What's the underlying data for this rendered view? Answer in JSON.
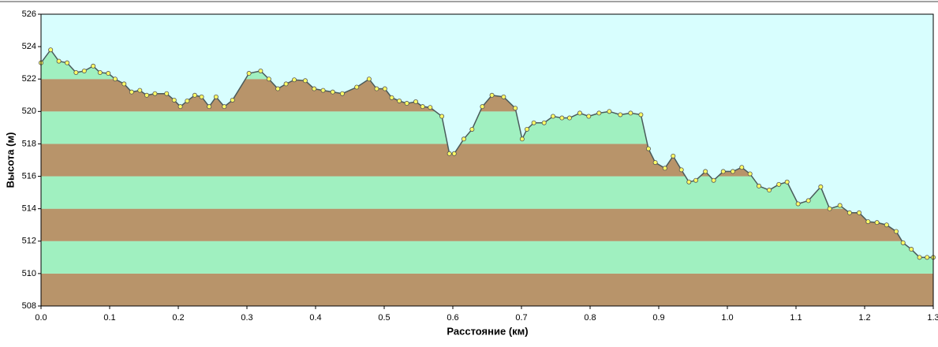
{
  "chart_data": {
    "type": "area",
    "xlabel": "Расстояние  (км)",
    "ylabel": "Высота (м)",
    "x": [
      0,
      0.014,
      0.026,
      0.038,
      0.051,
      0.063,
      0.076,
      0.086,
      0.098,
      0.108,
      0.121,
      0.132,
      0.144,
      0.154,
      0.166,
      0.183,
      0.194,
      0.203,
      0.213,
      0.224,
      0.234,
      0.245,
      0.255,
      0.267,
      0.279,
      0.303,
      0.32,
      0.332,
      0.345,
      0.357,
      0.369,
      0.385,
      0.398,
      0.411,
      0.425,
      0.439,
      0.46,
      0.478,
      0.489,
      0.501,
      0.511,
      0.522,
      0.533,
      0.546,
      0.556,
      0.567,
      0.584,
      0.595,
      0.602,
      0.616,
      0.628,
      0.643,
      0.657,
      0.674,
      0.691,
      0.701,
      0.708,
      0.718,
      0.733,
      0.746,
      0.759,
      0.77,
      0.785,
      0.798,
      0.813,
      0.828,
      0.844,
      0.859,
      0.874,
      0.885,
      0.895,
      0.909,
      0.921,
      0.933,
      0.944,
      0.954,
      0.968,
      0.98,
      0.994,
      1.008,
      1.021,
      1.033,
      1.046,
      1.061,
      1.075,
      1.087,
      1.103,
      1.118,
      1.136,
      1.149,
      1.164,
      1.178,
      1.192,
      1.205,
      1.218,
      1.232,
      1.246,
      1.256,
      1.268,
      1.28,
      1.291,
      1.3
    ],
    "values": [
      523.0,
      523.8,
      523.1,
      523.0,
      522.4,
      522.5,
      522.8,
      522.4,
      522.35,
      522.0,
      521.7,
      521.2,
      521.3,
      521.0,
      521.1,
      521.1,
      520.7,
      520.3,
      520.65,
      521.0,
      520.9,
      520.3,
      520.9,
      520.3,
      520.7,
      522.35,
      522.5,
      522.0,
      521.4,
      521.7,
      521.95,
      521.9,
      521.4,
      521.3,
      521.2,
      521.1,
      521.5,
      522.0,
      521.4,
      521.4,
      520.85,
      520.65,
      520.5,
      520.6,
      520.3,
      520.25,
      519.7,
      517.4,
      517.4,
      518.3,
      518.9,
      520.3,
      521.0,
      520.9,
      520.2,
      518.3,
      518.9,
      519.3,
      519.3,
      519.7,
      519.6,
      519.6,
      519.9,
      519.7,
      519.9,
      520.0,
      519.8,
      519.9,
      519.8,
      517.7,
      516.85,
      516.5,
      517.25,
      516.4,
      515.65,
      515.75,
      516.3,
      515.75,
      516.3,
      516.3,
      516.55,
      516.15,
      515.4,
      515.15,
      515.5,
      515.65,
      514.3,
      514.5,
      515.35,
      514.0,
      514.2,
      513.75,
      513.75,
      513.2,
      513.15,
      513.0,
      512.6,
      511.9,
      511.5,
      511.0,
      511.0,
      511.0
    ],
    "xlim": [
      0,
      1.3
    ],
    "ylim": [
      508,
      526
    ],
    "xticks": [
      {
        "value": 0,
        "label": "0.0"
      },
      0.1,
      0.2,
      0.3,
      0.4,
      0.5,
      0.6,
      0.7,
      0.8,
      0.9,
      {
        "value": 1,
        "label": "1.0"
      },
      1.1,
      1.2,
      1.3
    ],
    "yticks": [
      508,
      510,
      512,
      514,
      516,
      518,
      520,
      522,
      524,
      526
    ],
    "band_colors": [
      "#b8946a",
      "#a0f0c0"
    ],
    "background": "#d8fefe",
    "line_color": "#4a5a5a",
    "marker_color": "#ffff66"
  }
}
